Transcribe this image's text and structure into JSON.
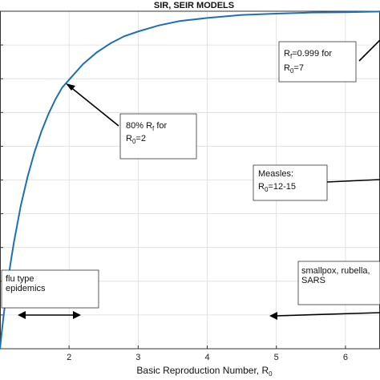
{
  "chart_data": {
    "type": "line",
    "title": "SIR, SEIR MODELS",
    "xlabel_main": "Basic Reproduction Number, R",
    "xlabel_sub": "0",
    "ylabel": "",
    "xlim": [
      1.0,
      6.5
    ],
    "ylim": [
      0,
      1.0
    ],
    "x_ticks": [
      2,
      3,
      4,
      5,
      6
    ],
    "y_tick_count": 11,
    "grid": true,
    "series": [
      {
        "color": "#1f6fb4",
        "x": [
          1.0,
          1.02,
          1.05,
          1.1,
          1.15,
          1.2,
          1.3,
          1.4,
          1.5,
          1.6,
          1.7,
          1.8,
          1.9,
          2.0,
          2.2,
          2.4,
          2.6,
          2.8,
          3.0,
          3.3,
          3.6,
          4.0,
          4.5,
          5.0,
          5.5,
          6.0,
          6.5
        ],
        "y": [
          0.0,
          0.039,
          0.094,
          0.176,
          0.25,
          0.314,
          0.423,
          0.51,
          0.583,
          0.644,
          0.695,
          0.738,
          0.774,
          0.797,
          0.843,
          0.878,
          0.905,
          0.926,
          0.94,
          0.958,
          0.971,
          0.98,
          0.989,
          0.993,
          0.996,
          0.997,
          0.999
        ]
      }
    ],
    "annotations": [
      {
        "line1": "80% R",
        "line1_sub": "f",
        "line1_tail": " for",
        "line2": "R",
        "line2_sub": "0",
        "line2_tail": "=2"
      },
      {
        "line1": "R",
        "line1_sub": "f",
        "line1_tail": "=0.999 for",
        "line2": "R",
        "line2_sub": "0",
        "line2_tail": "=7"
      },
      {
        "line1": "Measles:",
        "line1_sub": "",
        "line1_tail": "",
        "line2": "R",
        "line2_sub": "0",
        "line2_tail": "=12-15"
      },
      {
        "line1": "flu type",
        "line1_sub": "",
        "line1_tail": "",
        "line2": "epidemics",
        "line2_sub": "",
        "line2_tail": ""
      },
      {
        "line1": "smallpox, rubella,",
        "line1_sub": "",
        "line1_tail": "",
        "line2": "SARS",
        "line2_sub": "",
        "line2_tail": ""
      }
    ]
  }
}
